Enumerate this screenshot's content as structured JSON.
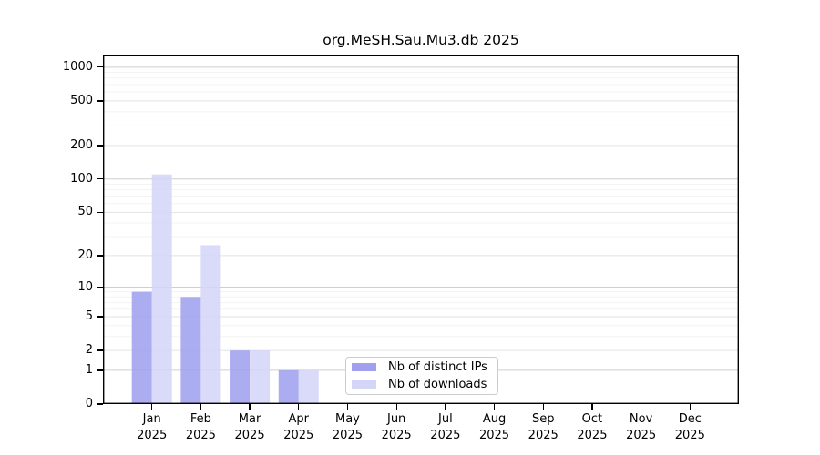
{
  "title": "org.MeSH.Sau.Mu3.db 2025",
  "chart_data": {
    "type": "bar",
    "title": "org.MeSH.Sau.Mu3.db 2025",
    "categories": [
      "Jan",
      "Feb",
      "Mar",
      "Apr",
      "May",
      "Jun",
      "Jul",
      "Aug",
      "Sep",
      "Oct",
      "Nov",
      "Dec"
    ],
    "year_label": "2025",
    "series": [
      {
        "name": "Nb of distinct IPs",
        "color": "#a0a0ef",
        "values": [
          9,
          8,
          2,
          1,
          0,
          0,
          0,
          0,
          0,
          0,
          0,
          0
        ]
      },
      {
        "name": "Nb of downloads",
        "color": "#d5d5f8",
        "values": [
          110,
          25,
          2,
          1,
          0,
          0,
          0,
          0,
          0,
          0,
          0,
          0
        ]
      }
    ],
    "yscale": "log1p",
    "ylim": [
      0,
      1295
    ],
    "yticks": [
      0,
      1,
      2,
      5,
      10,
      20,
      50,
      100,
      200,
      500,
      1000
    ],
    "minor_gridlines": [
      3,
      4,
      6,
      7,
      8,
      9,
      30,
      40,
      60,
      70,
      80,
      90,
      300,
      400,
      600,
      700,
      800,
      900
    ],
    "grid": "horizontal",
    "legend_position": "bottom-center",
    "xlabel": "",
    "ylabel": ""
  },
  "colors": {
    "major_gridline": "#cfcfcf",
    "labeled_gridline": "#e2e2e2",
    "minor_gridline": "#f3f3f3",
    "axis_frame": "#000000"
  }
}
